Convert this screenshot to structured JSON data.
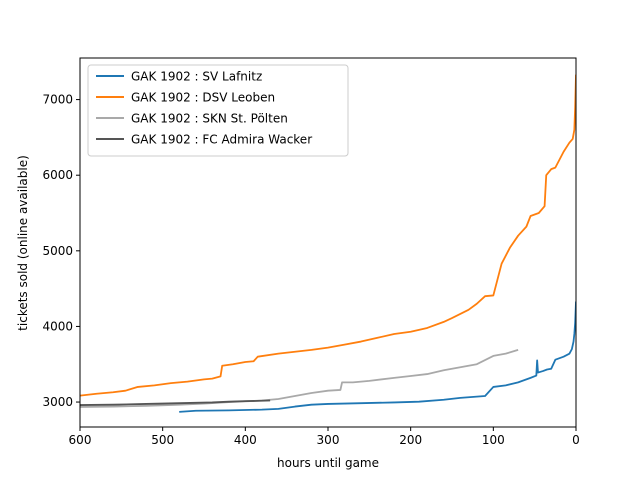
{
  "chart_data": {
    "type": "line",
    "title": "",
    "xlabel": "hours until game",
    "ylabel": "tickets sold (online available)",
    "xlim": [
      600,
      0
    ],
    "ylim": [
      2670,
      7550
    ],
    "x_ticks": [
      600,
      500,
      400,
      300,
      200,
      100,
      0
    ],
    "y_ticks": [
      3000,
      4000,
      5000,
      6000,
      7000
    ],
    "grid": false,
    "legend_position": "upper-left",
    "series": [
      {
        "name": "GAK 1902 : SV Lafnitz",
        "color": "#1f77b4",
        "points": [
          [
            480,
            2870
          ],
          [
            460,
            2885
          ],
          [
            420,
            2890
          ],
          [
            380,
            2900
          ],
          [
            360,
            2910
          ],
          [
            340,
            2940
          ],
          [
            320,
            2965
          ],
          [
            300,
            2975
          ],
          [
            260,
            2985
          ],
          [
            220,
            2995
          ],
          [
            190,
            3005
          ],
          [
            160,
            3030
          ],
          [
            140,
            3055
          ],
          [
            110,
            3080
          ],
          [
            100,
            3200
          ],
          [
            85,
            3220
          ],
          [
            70,
            3260
          ],
          [
            55,
            3320
          ],
          [
            48,
            3350
          ],
          [
            47,
            3550
          ],
          [
            46,
            3390
          ],
          [
            40,
            3410
          ],
          [
            35,
            3430
          ],
          [
            30,
            3440
          ],
          [
            25,
            3560
          ],
          [
            15,
            3600
          ],
          [
            8,
            3640
          ],
          [
            5,
            3700
          ],
          [
            3,
            3800
          ],
          [
            2,
            3900
          ],
          [
            1,
            4050
          ],
          [
            0,
            4330
          ]
        ]
      },
      {
        "name": "GAK 1902 : DSV Leoben",
        "color": "#ff7f0e",
        "points": [
          [
            600,
            3085
          ],
          [
            580,
            3110
          ],
          [
            560,
            3130
          ],
          [
            545,
            3150
          ],
          [
            530,
            3200
          ],
          [
            510,
            3220
          ],
          [
            490,
            3250
          ],
          [
            470,
            3270
          ],
          [
            450,
            3300
          ],
          [
            440,
            3310
          ],
          [
            430,
            3340
          ],
          [
            428,
            3480
          ],
          [
            415,
            3500
          ],
          [
            400,
            3530
          ],
          [
            390,
            3540
          ],
          [
            385,
            3600
          ],
          [
            360,
            3640
          ],
          [
            340,
            3665
          ],
          [
            320,
            3690
          ],
          [
            300,
            3720
          ],
          [
            280,
            3760
          ],
          [
            260,
            3800
          ],
          [
            240,
            3850
          ],
          [
            220,
            3900
          ],
          [
            200,
            3930
          ],
          [
            180,
            3980
          ],
          [
            160,
            4060
          ],
          [
            150,
            4110
          ],
          [
            130,
            4220
          ],
          [
            120,
            4300
          ],
          [
            110,
            4400
          ],
          [
            100,
            4410
          ],
          [
            95,
            4620
          ],
          [
            90,
            4830
          ],
          [
            80,
            5040
          ],
          [
            70,
            5200
          ],
          [
            60,
            5320
          ],
          [
            55,
            5460
          ],
          [
            45,
            5500
          ],
          [
            38,
            5590
          ],
          [
            36,
            6000
          ],
          [
            30,
            6080
          ],
          [
            25,
            6100
          ],
          [
            15,
            6310
          ],
          [
            8,
            6430
          ],
          [
            4,
            6480
          ],
          [
            2,
            6600
          ],
          [
            1,
            6900
          ],
          [
            0,
            7330
          ]
        ]
      },
      {
        "name": "GAK 1902 : SKN St. Pölten",
        "color": "#a9a9a9",
        "points": [
          [
            600,
            2935
          ],
          [
            560,
            2940
          ],
          [
            520,
            2950
          ],
          [
            480,
            2965
          ],
          [
            450,
            2980
          ],
          [
            420,
            3000
          ],
          [
            400,
            3010
          ],
          [
            380,
            3020
          ],
          [
            360,
            3040
          ],
          [
            340,
            3080
          ],
          [
            320,
            3120
          ],
          [
            300,
            3150
          ],
          [
            285,
            3160
          ],
          [
            283,
            3260
          ],
          [
            270,
            3260
          ],
          [
            250,
            3280
          ],
          [
            220,
            3320
          ],
          [
            200,
            3345
          ],
          [
            180,
            3370
          ],
          [
            160,
            3420
          ],
          [
            140,
            3460
          ],
          [
            120,
            3500
          ],
          [
            100,
            3610
          ],
          [
            85,
            3640
          ],
          [
            70,
            3690
          ]
        ]
      },
      {
        "name": "GAK 1902 : FC Admira Wacker",
        "color": "#555555",
        "points": [
          [
            600,
            2960
          ],
          [
            560,
            2965
          ],
          [
            520,
            2975
          ],
          [
            480,
            2985
          ],
          [
            440,
            2995
          ],
          [
            420,
            3005
          ],
          [
            400,
            3012
          ],
          [
            385,
            3015
          ],
          [
            370,
            3020
          ]
        ]
      }
    ]
  }
}
